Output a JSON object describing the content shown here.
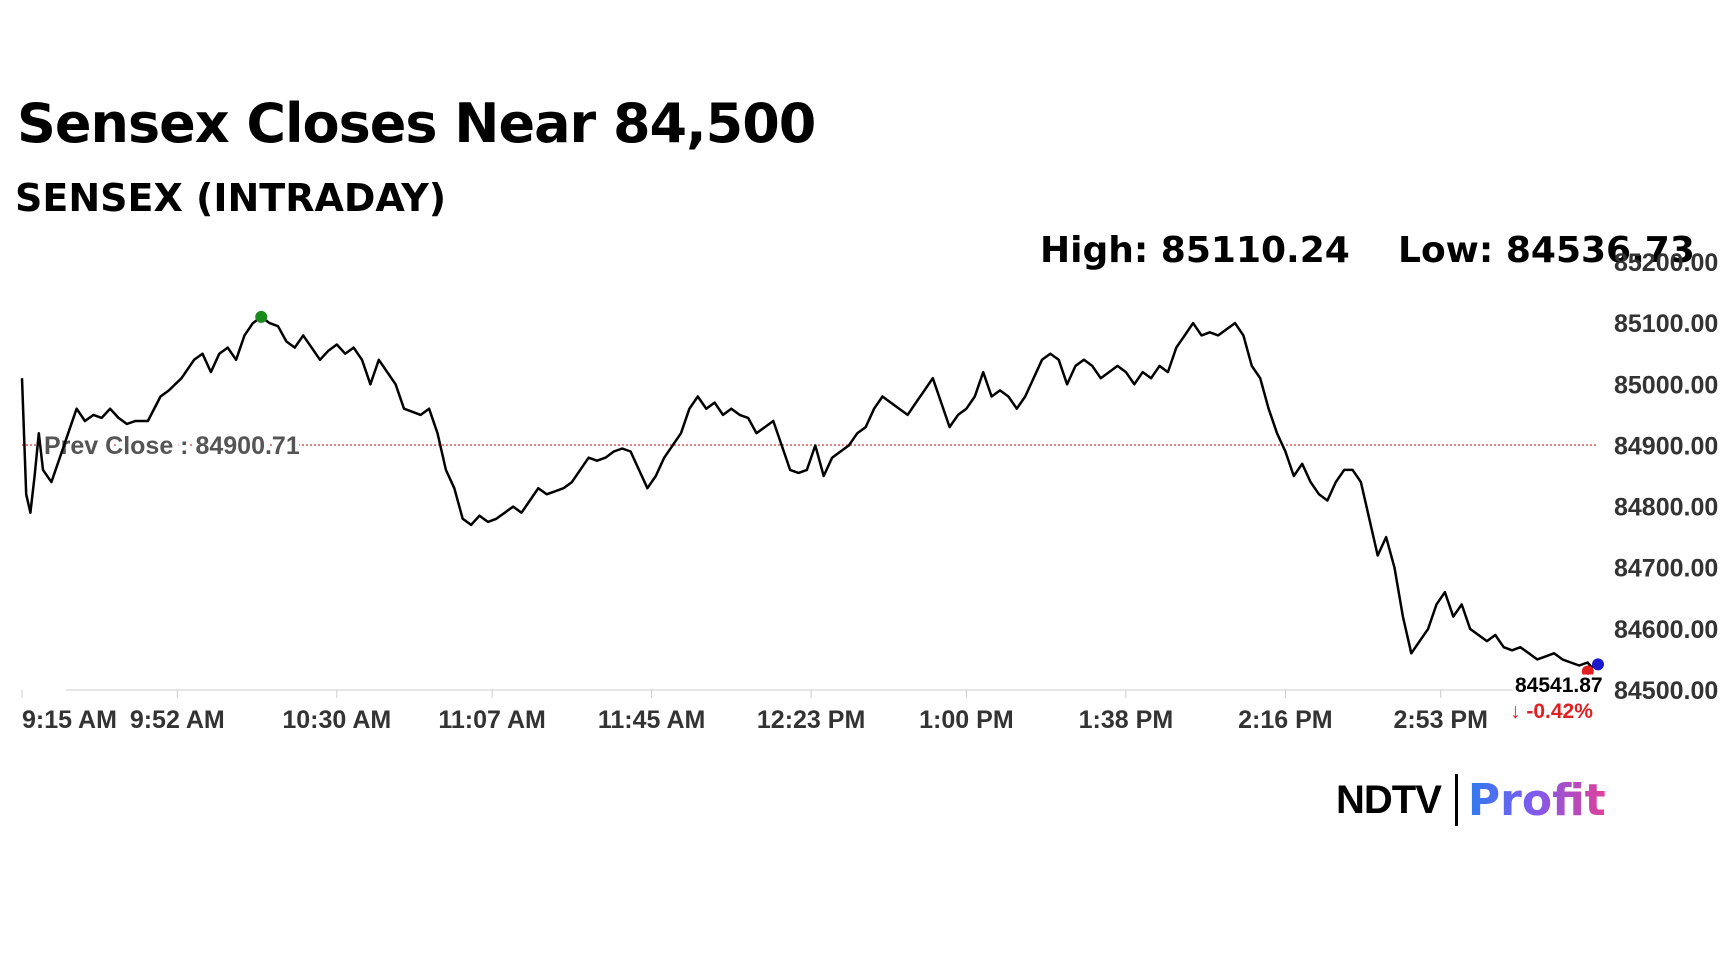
{
  "headline": "Sensex Closes Near 84,500",
  "subheadline": "SENSEX (INTRADAY)",
  "stats": {
    "high_text": "High: 85110.24",
    "low_text": "Low: 84536.73"
  },
  "brand": {
    "ndtv": "NDTV",
    "profit": "Profit"
  },
  "chart_data": {
    "type": "line",
    "ylim": [
      84500,
      85200
    ],
    "y_ticks": [
      "85200.00",
      "85100.00",
      "85000.00",
      "84900.00",
      "84800.00",
      "84700.00",
      "84600.00",
      "84500.00"
    ],
    "x_ticks": [
      "9:15 AM",
      "9:52 AM",
      "10:30 AM",
      "11:07 AM",
      "11:45 AM",
      "12:23 PM",
      "1:00 PM",
      "1:38 PM",
      "2:16 PM",
      "2:53 PM"
    ],
    "x_start": "9:15 AM",
    "x_end": "3:30 PM",
    "prev_close": {
      "label": "Prev Close : 84900.71",
      "value": 84900.71
    },
    "high": {
      "time": "10:12 AM",
      "value": 85110.24
    },
    "low": {
      "time": "3:29 PM",
      "value": 84536.73
    },
    "last": {
      "value_text": "84541.87",
      "change_text": "-0.42%",
      "value": 84541.87
    },
    "series": [
      {
        "points": [
          [
            "9:15 AM",
            85010
          ],
          [
            "9:16 AM",
            84820
          ],
          [
            "9:17 AM",
            84790
          ],
          [
            "9:18 AM",
            84850
          ],
          [
            "9:19 AM",
            84920
          ],
          [
            "9:20 AM",
            84860
          ],
          [
            "9:22 AM",
            84840
          ],
          [
            "9:24 AM",
            84880
          ],
          [
            "9:26 AM",
            84920
          ],
          [
            "9:28 AM",
            84960
          ],
          [
            "9:30 AM",
            84940
          ],
          [
            "9:32 AM",
            84950
          ],
          [
            "9:34 AM",
            84945
          ],
          [
            "9:36 AM",
            84960
          ],
          [
            "9:38 AM",
            84945
          ],
          [
            "9:40 AM",
            84935
          ],
          [
            "9:42 AM",
            84940
          ],
          [
            "9:45 AM",
            84940
          ],
          [
            "9:48 AM",
            84980
          ],
          [
            "9:50 AM",
            84990
          ],
          [
            "9:53 AM",
            85010
          ],
          [
            "9:56 AM",
            85040
          ],
          [
            "9:58 AM",
            85050
          ],
          [
            "10:00 AM",
            85020
          ],
          [
            "10:02 AM",
            85050
          ],
          [
            "10:04 AM",
            85060
          ],
          [
            "10:06 AM",
            85040
          ],
          [
            "10:08 AM",
            85080
          ],
          [
            "10:10 AM",
            85100
          ],
          [
            "10:12 AM",
            85110
          ],
          [
            "10:14 AM",
            85100
          ],
          [
            "10:16 AM",
            85095
          ],
          [
            "10:18 AM",
            85070
          ],
          [
            "10:20 AM",
            85060
          ],
          [
            "10:22 AM",
            85080
          ],
          [
            "10:24 AM",
            85060
          ],
          [
            "10:26 AM",
            85040
          ],
          [
            "10:28 AM",
            85055
          ],
          [
            "10:30 AM",
            85065
          ],
          [
            "10:32 AM",
            85050
          ],
          [
            "10:34 AM",
            85060
          ],
          [
            "10:36 AM",
            85040
          ],
          [
            "10:38 AM",
            85000
          ],
          [
            "10:40 AM",
            85040
          ],
          [
            "10:42 AM",
            85020
          ],
          [
            "10:44 AM",
            85000
          ],
          [
            "10:46 AM",
            84960
          ],
          [
            "10:48 AM",
            84955
          ],
          [
            "10:50 AM",
            84950
          ],
          [
            "10:52 AM",
            84960
          ],
          [
            "10:54 AM",
            84920
          ],
          [
            "10:56 AM",
            84860
          ],
          [
            "10:58 AM",
            84830
          ],
          [
            "11:00 AM",
            84780
          ],
          [
            "11:02 AM",
            84770
          ],
          [
            "11:04 AM",
            84785
          ],
          [
            "11:06 AM",
            84775
          ],
          [
            "11:08 AM",
            84780
          ],
          [
            "11:10 AM",
            84790
          ],
          [
            "11:12 AM",
            84800
          ],
          [
            "11:14 AM",
            84790
          ],
          [
            "11:16 AM",
            84810
          ],
          [
            "11:18 AM",
            84830
          ],
          [
            "11:20 AM",
            84820
          ],
          [
            "11:22 AM",
            84825
          ],
          [
            "11:24 AM",
            84830
          ],
          [
            "11:26 AM",
            84840
          ],
          [
            "11:28 AM",
            84860
          ],
          [
            "11:30 AM",
            84880
          ],
          [
            "11:32 AM",
            84875
          ],
          [
            "11:34 AM",
            84880
          ],
          [
            "11:36 AM",
            84890
          ],
          [
            "11:38 AM",
            84895
          ],
          [
            "11:40 AM",
            84890
          ],
          [
            "11:42 AM",
            84860
          ],
          [
            "11:44 AM",
            84830
          ],
          [
            "11:46 AM",
            84850
          ],
          [
            "11:48 AM",
            84880
          ],
          [
            "11:50 AM",
            84900
          ],
          [
            "11:52 AM",
            84920
          ],
          [
            "11:54 AM",
            84960
          ],
          [
            "11:56 AM",
            84980
          ],
          [
            "11:58 AM",
            84960
          ],
          [
            "12:00 PM",
            84970
          ],
          [
            "12:02 PM",
            84950
          ],
          [
            "12:04 PM",
            84960
          ],
          [
            "12:06 PM",
            84950
          ],
          [
            "12:08 PM",
            84945
          ],
          [
            "12:10 PM",
            84920
          ],
          [
            "12:12 PM",
            84930
          ],
          [
            "12:14 PM",
            84940
          ],
          [
            "12:16 PM",
            84900
          ],
          [
            "12:18 PM",
            84860
          ],
          [
            "12:20 PM",
            84855
          ],
          [
            "12:22 PM",
            84860
          ],
          [
            "12:24 PM",
            84900
          ],
          [
            "12:26 PM",
            84850
          ],
          [
            "12:28 PM",
            84880
          ],
          [
            "12:30 PM",
            84890
          ],
          [
            "12:32 PM",
            84900
          ],
          [
            "12:34 PM",
            84920
          ],
          [
            "12:36 PM",
            84930
          ],
          [
            "12:38 PM",
            84960
          ],
          [
            "12:40 PM",
            84980
          ],
          [
            "12:42 PM",
            84970
          ],
          [
            "12:44 PM",
            84960
          ],
          [
            "12:46 PM",
            84950
          ],
          [
            "12:48 PM",
            84970
          ],
          [
            "12:50 PM",
            84990
          ],
          [
            "12:52 PM",
            85010
          ],
          [
            "12:54 PM",
            84970
          ],
          [
            "12:56 PM",
            84930
          ],
          [
            "12:58 PM",
            84950
          ],
          [
            "1:00 PM",
            84960
          ],
          [
            "1:02 PM",
            84980
          ],
          [
            "1:04 PM",
            85020
          ],
          [
            "1:06 PM",
            84980
          ],
          [
            "1:08 PM",
            84990
          ],
          [
            "1:10 PM",
            84980
          ],
          [
            "1:12 PM",
            84960
          ],
          [
            "1:14 PM",
            84980
          ],
          [
            "1:16 PM",
            85010
          ],
          [
            "1:18 PM",
            85040
          ],
          [
            "1:20 PM",
            85050
          ],
          [
            "1:22 PM",
            85040
          ],
          [
            "1:24 PM",
            85000
          ],
          [
            "1:26 PM",
            85030
          ],
          [
            "1:28 PM",
            85040
          ],
          [
            "1:30 PM",
            85030
          ],
          [
            "1:32 PM",
            85010
          ],
          [
            "1:34 PM",
            85020
          ],
          [
            "1:36 PM",
            85030
          ],
          [
            "1:38 PM",
            85020
          ],
          [
            "1:40 PM",
            85000
          ],
          [
            "1:42 PM",
            85020
          ],
          [
            "1:44 PM",
            85010
          ],
          [
            "1:46 PM",
            85030
          ],
          [
            "1:48 PM",
            85020
          ],
          [
            "1:50 PM",
            85060
          ],
          [
            "1:52 PM",
            85080
          ],
          [
            "1:54 PM",
            85100
          ],
          [
            "1:56 PM",
            85080
          ],
          [
            "1:58 PM",
            85085
          ],
          [
            "2:00 PM",
            85080
          ],
          [
            "2:02 PM",
            85090
          ],
          [
            "2:04 PM",
            85100
          ],
          [
            "2:06 PM",
            85080
          ],
          [
            "2:08 PM",
            85030
          ],
          [
            "2:10 PM",
            85010
          ],
          [
            "2:12 PM",
            84960
          ],
          [
            "2:14 PM",
            84920
          ],
          [
            "2:16 PM",
            84890
          ],
          [
            "2:18 PM",
            84850
          ],
          [
            "2:20 PM",
            84870
          ],
          [
            "2:22 PM",
            84840
          ],
          [
            "2:24 PM",
            84820
          ],
          [
            "2:26 PM",
            84810
          ],
          [
            "2:28 PM",
            84840
          ],
          [
            "2:30 PM",
            84860
          ],
          [
            "2:32 PM",
            84860
          ],
          [
            "2:34 PM",
            84840
          ],
          [
            "2:36 PM",
            84780
          ],
          [
            "2:38 PM",
            84720
          ],
          [
            "2:40 PM",
            84750
          ],
          [
            "2:42 PM",
            84700
          ],
          [
            "2:44 PM",
            84620
          ],
          [
            "2:46 PM",
            84560
          ],
          [
            "2:48 PM",
            84580
          ],
          [
            "2:50 PM",
            84600
          ],
          [
            "2:52 PM",
            84640
          ],
          [
            "2:54 PM",
            84660
          ],
          [
            "2:56 PM",
            84620
          ],
          [
            "2:58 PM",
            84640
          ],
          [
            "3:00 PM",
            84600
          ],
          [
            "3:02 PM",
            84590
          ],
          [
            "3:04 PM",
            84580
          ],
          [
            "3:06 PM",
            84590
          ],
          [
            "3:08 PM",
            84570
          ],
          [
            "3:10 PM",
            84565
          ],
          [
            "3:12 PM",
            84570
          ],
          [
            "3:14 PM",
            84560
          ],
          [
            "3:16 PM",
            84550
          ],
          [
            "3:18 PM",
            84555
          ],
          [
            "3:20 PM",
            84560
          ],
          [
            "3:22 PM",
            84550
          ],
          [
            "3:24 PM",
            84545
          ],
          [
            "3:26 PM",
            84540
          ],
          [
            "3:28 PM",
            84545
          ],
          [
            "3:29 PM",
            84537
          ],
          [
            "3:30 PM",
            84542
          ]
        ]
      }
    ]
  },
  "colors": {
    "line": "#000000",
    "prev_close_line": "#cc0000",
    "high_marker": "#1a8a1a",
    "low_marker": "#e02020",
    "last_marker": "#1a1acc",
    "negative_change": "#e02020",
    "axis_line": "#cccccc"
  }
}
